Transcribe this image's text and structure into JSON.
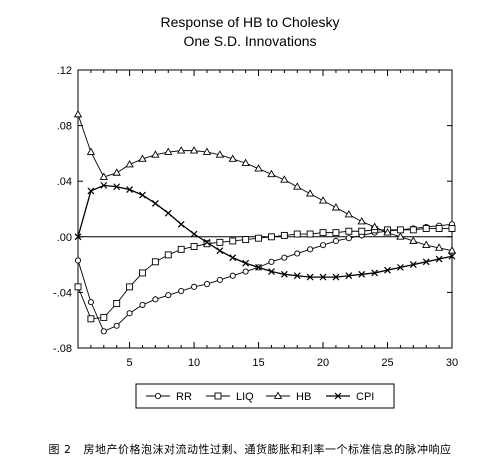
{
  "caption": {
    "label": "图 2",
    "text": "房地产价格泡沫对流动性过剩、通货膨胀和利率一个标准信息的脉冲响应"
  },
  "chart_data": {
    "type": "line",
    "title": "Response of HB to Cholesky",
    "subtitle": "One S.D. Innovations",
    "xlim": [
      1,
      30
    ],
    "ylim": [
      -0.08,
      0.12
    ],
    "x_ticks": [
      5,
      10,
      15,
      20,
      25,
      30
    ],
    "y_ticks": [
      -0.08,
      -0.04,
      0.0,
      0.04,
      0.08,
      0.12
    ],
    "y_tick_labels": [
      "-.08",
      "-.04",
      ".00",
      ".04",
      ".08",
      ".12"
    ],
    "zero_line": true,
    "grid": false,
    "legend_position": "bottom",
    "x": [
      1,
      2,
      3,
      4,
      5,
      6,
      7,
      8,
      9,
      10,
      11,
      12,
      13,
      14,
      15,
      16,
      17,
      18,
      19,
      20,
      21,
      22,
      23,
      24,
      25,
      26,
      27,
      28,
      29,
      30
    ],
    "series": [
      {
        "name": "RR",
        "marker": "circle",
        "values": [
          -0.017,
          -0.047,
          -0.068,
          -0.064,
          -0.055,
          -0.049,
          -0.045,
          -0.042,
          -0.039,
          -0.036,
          -0.034,
          -0.031,
          -0.028,
          -0.025,
          -0.022,
          -0.018,
          -0.015,
          -0.012,
          -0.009,
          -0.006,
          -0.003,
          -0.001,
          0.001,
          0.003,
          0.004,
          0.005,
          0.006,
          0.007,
          0.008,
          0.009
        ]
      },
      {
        "name": "LIQ",
        "marker": "square",
        "values": [
          -0.036,
          -0.059,
          -0.058,
          -0.048,
          -0.036,
          -0.026,
          -0.018,
          -0.013,
          -0.009,
          -0.007,
          -0.005,
          -0.004,
          -0.003,
          -0.002,
          -0.001,
          0.0,
          0.001,
          0.002,
          0.002,
          0.003,
          0.003,
          0.004,
          0.004,
          0.005,
          0.005,
          0.005,
          0.005,
          0.006,
          0.006,
          0.006
        ]
      },
      {
        "name": "HB",
        "marker": "triangle",
        "values": [
          0.088,
          0.061,
          0.043,
          0.046,
          0.052,
          0.056,
          0.059,
          0.061,
          0.062,
          0.062,
          0.061,
          0.059,
          0.056,
          0.053,
          0.049,
          0.045,
          0.041,
          0.036,
          0.031,
          0.026,
          0.021,
          0.016,
          0.011,
          0.007,
          0.003,
          0.0,
          -0.003,
          -0.006,
          -0.008,
          -0.01
        ]
      },
      {
        "name": "CPI",
        "marker": "x",
        "values": [
          0.0,
          0.033,
          0.037,
          0.036,
          0.034,
          0.03,
          0.024,
          0.017,
          0.009,
          0.002,
          -0.004,
          -0.01,
          -0.015,
          -0.019,
          -0.022,
          -0.025,
          -0.027,
          -0.028,
          -0.029,
          -0.029,
          -0.029,
          -0.028,
          -0.027,
          -0.026,
          -0.024,
          -0.022,
          -0.02,
          -0.018,
          -0.016,
          -0.014
        ]
      }
    ]
  }
}
